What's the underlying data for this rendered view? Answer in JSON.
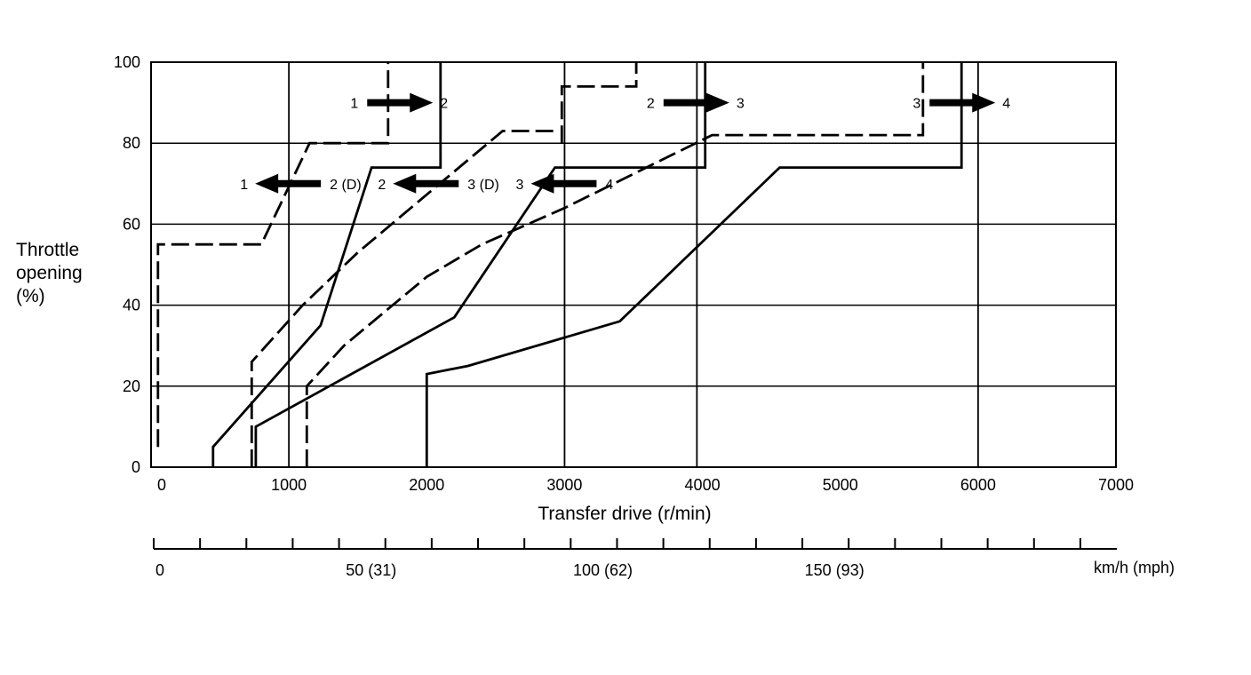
{
  "chart_data": {
    "type": "line",
    "title": "",
    "xlabel": "Transfer drive (r/min)",
    "ylabel": [
      "Throttle",
      "opening",
      "(%)"
    ],
    "xlim": [
      0,
      7000
    ],
    "ylim": [
      0,
      100
    ],
    "x_ticks": [
      {
        "v": 0,
        "label": "0"
      },
      {
        "v": 1000,
        "label": "1000"
      },
      {
        "v": 2000,
        "label": "2000"
      },
      {
        "v": 3000,
        "label": "3000"
      },
      {
        "v": 4000,
        "label": "4000"
      },
      {
        "v": 5000,
        "label": "5000"
      },
      {
        "v": 6000,
        "label": "6000"
      },
      {
        "v": 7000,
        "label": "7000"
      }
    ],
    "y_ticks": [
      {
        "v": 0,
        "label": "0"
      },
      {
        "v": 20,
        "label": "20"
      },
      {
        "v": 40,
        "label": "40"
      },
      {
        "v": 60,
        "label": "60"
      },
      {
        "v": 80,
        "label": "80"
      },
      {
        "v": 100,
        "label": "100"
      }
    ],
    "grid": true,
    "series": [
      {
        "id": "s12-up",
        "style": "solid",
        "points": [
          [
            450,
            0
          ],
          [
            450,
            5
          ],
          [
            1230,
            35
          ],
          [
            1600,
            74
          ],
          [
            2100,
            74
          ],
          [
            2100,
            100
          ]
        ]
      },
      {
        "id": "s23-up",
        "style": "solid",
        "points": [
          [
            760,
            0
          ],
          [
            760,
            10
          ],
          [
            2200,
            37
          ],
          [
            2930,
            74
          ],
          [
            4020,
            74
          ],
          [
            4020,
            100
          ]
        ]
      },
      {
        "id": "s34-up",
        "style": "solid",
        "points": [
          [
            2000,
            0
          ],
          [
            2000,
            23
          ],
          [
            2300,
            25
          ],
          [
            3400,
            36
          ],
          [
            4560,
            74
          ],
          [
            5880,
            74
          ],
          [
            5880,
            100
          ]
        ]
      },
      {
        "id": "s21-down",
        "style": "dash",
        "points": [
          [
            50,
            5
          ],
          [
            50,
            55
          ],
          [
            800,
            55
          ],
          [
            1150,
            80
          ],
          [
            1720,
            80
          ],
          [
            1720,
            100
          ]
        ]
      },
      {
        "id": "s32-down",
        "style": "dash",
        "points": [
          [
            730,
            0
          ],
          [
            730,
            26
          ],
          [
            1100,
            40
          ],
          [
            1500,
            53
          ],
          [
            2550,
            83
          ],
          [
            2950,
            83
          ]
        ]
      },
      {
        "id": "s32-upper",
        "style": "dash",
        "points": [
          [
            2980,
            80
          ],
          [
            2980,
            94
          ],
          [
            3520,
            94
          ],
          [
            3520,
            100
          ]
        ]
      },
      {
        "id": "s43-down",
        "style": "dash",
        "points": [
          [
            1130,
            0
          ],
          [
            1130,
            20
          ],
          [
            1400,
            30
          ],
          [
            2000,
            47
          ],
          [
            2400,
            55
          ],
          [
            3000,
            64
          ],
          [
            4070,
            82
          ],
          [
            5600,
            82
          ],
          [
            5600,
            100
          ]
        ]
      }
    ],
    "vertical_lines": [
      1000,
      3000,
      3960,
      6000
    ],
    "annotations": [
      {
        "id": "up12",
        "from": "1",
        "to": "2",
        "direction": "right",
        "x": 1800,
        "y": 90
      },
      {
        "id": "up23",
        "from": "2",
        "to": "3",
        "direction": "right",
        "x": 3950,
        "y": 90
      },
      {
        "id": "up34",
        "from": "3",
        "to": "4",
        "direction": "right",
        "x": 5880,
        "y": 90
      },
      {
        "id": "dn21",
        "from": "1",
        "to": "2 (D)",
        "direction": "left",
        "x": 1000,
        "y": 70
      },
      {
        "id": "dn32",
        "from": "2",
        "to": "3 (D)",
        "direction": "left",
        "x": 2000,
        "y": 70
      },
      {
        "id": "dn43",
        "from": "3",
        "to": "4",
        "direction": "left",
        "x": 3000,
        "y": 70
      }
    ],
    "secondary_axis": {
      "label": "km/h (mph)",
      "ticks": [
        {
          "v": 0,
          "label": "0"
        },
        {
          "v": 50,
          "label": "50 (31)"
        },
        {
          "v": 100,
          "label": "100 (62)"
        },
        {
          "v": 150,
          "label": "150 (93)"
        }
      ],
      "minor_step": 10,
      "max": 205
    }
  }
}
